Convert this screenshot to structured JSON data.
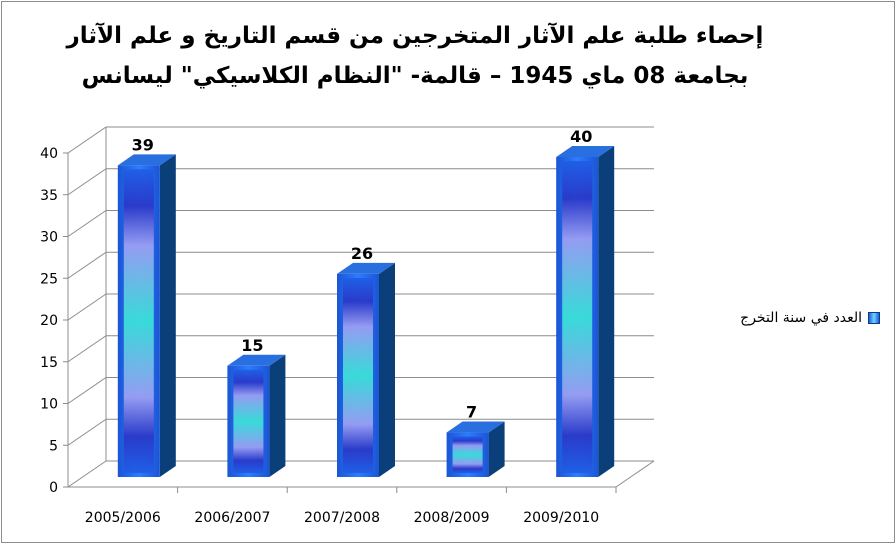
{
  "title_line1": "إحصاء طلبة علم الآثار المتخرجين من قسم التاريخ و علم الآثار",
  "title_line2": "بجامعة 08 ماي 1945 – قالمة- \"النظام الكلاسيكي\" ليسانس",
  "legend_label": "العدد في سنة التخرج",
  "chart_data": {
    "type": "bar",
    "categories": [
      "2005/2006",
      "2006/2007",
      "2007/2008",
      "2008/2009",
      "2009/2010"
    ],
    "series": [
      {
        "name": "العدد في سنة التخرج",
        "values": [
          39,
          15,
          26,
          7,
          40
        ]
      }
    ],
    "yticks": [
      0,
      5,
      10,
      15,
      20,
      25,
      30,
      35,
      40
    ],
    "ylim": [
      0,
      40
    ],
    "grid": true,
    "legend_position": "right",
    "style": "3d-column",
    "bar_color": "#1e5bd9",
    "bar_highlight": "#6ee8f0",
    "bar_side": "#0b3f7a"
  }
}
